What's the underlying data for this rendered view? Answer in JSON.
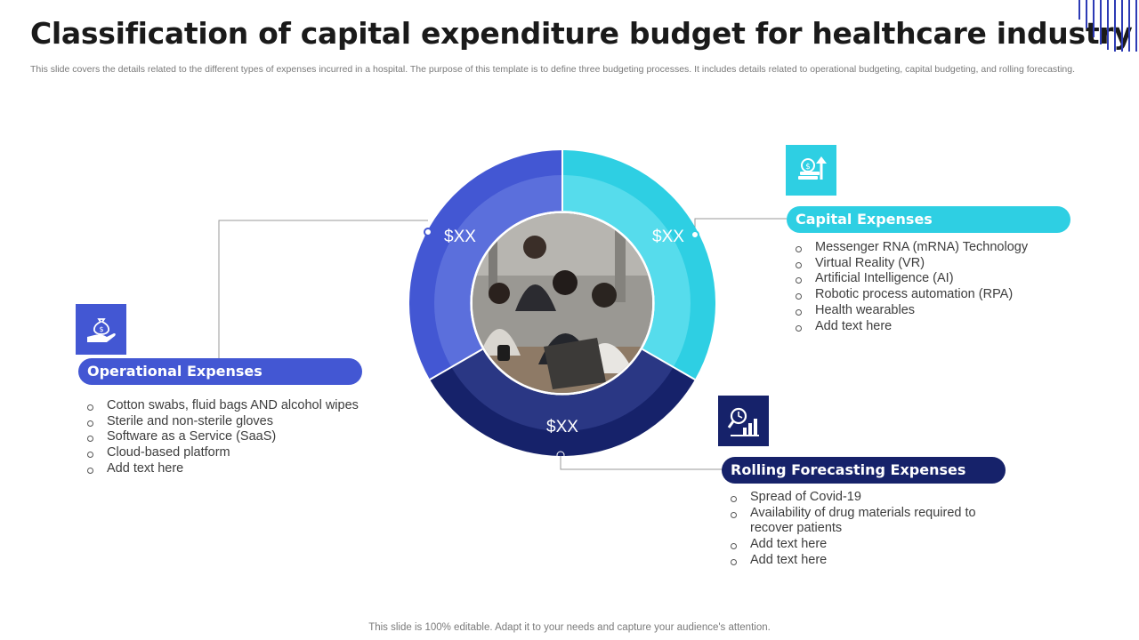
{
  "title": "Classification of capital expenditure budget for healthcare industry",
  "subtitle": "This slide covers the details related to the different types of expenses incurred in a hospital. The purpose of this template is to define three budgeting processes. It includes details related to operational budgeting, capital budgeting, and rolling forecasting.",
  "colors": {
    "operational": "#4357d3",
    "capital": "#2ecfe3",
    "rolling": "#16226a"
  },
  "segments": [
    {
      "key": "operational",
      "value_label": "$XX",
      "heading": "Operational Expenses",
      "icon": "hand-money-bag-icon",
      "items": [
        "Cotton swabs, fluid bags AND alcohol wipes",
        "Sterile and non-sterile gloves",
        "Software as a Service (SaaS)",
        "Cloud-based platform",
        "Add text here"
      ]
    },
    {
      "key": "capital",
      "value_label": "$XX",
      "heading": "Capital Expenses",
      "icon": "money-growth-arrow-icon",
      "items": [
        "Messenger RNA  (mRNA) Technology",
        "Virtual Reality (VR)",
        "Artificial Intelligence  (AI)",
        "Robotic process automation (RPA)",
        "Health wearables",
        "Add text here"
      ]
    },
    {
      "key": "rolling",
      "value_label": "$XX",
      "heading": "Rolling Forecasting Expenses",
      "icon": "chart-magnifier-icon",
      "items": [
        "Spread of Covid-19",
        "Availability  of drug materials required to recover patients",
        "Add text here",
        "Add text here"
      ]
    }
  ],
  "footer": "This slide is 100% editable. Adapt it to your needs and capture your audience's attention."
}
